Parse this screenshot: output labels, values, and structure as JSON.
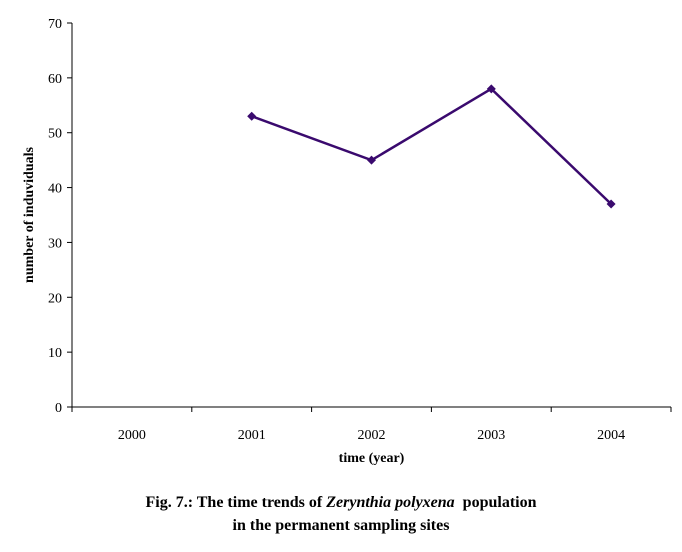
{
  "chart_data": {
    "type": "line",
    "x": [
      "2000",
      "2001",
      "2002",
      "2003",
      "2004"
    ],
    "series": [
      {
        "values": [
          null,
          53,
          45,
          58,
          37
        ]
      }
    ],
    "xlabel": "time (year)",
    "ylabel": "number of induviduals",
    "ylim": [
      0,
      70
    ],
    "yticks": [
      0,
      10,
      20,
      30,
      40,
      50,
      60,
      70
    ],
    "grid": false,
    "line_color": "#3a0a6e",
    "marker": "diamond"
  },
  "caption": {
    "prefix": "Fig. 7.: The time trends of ",
    "species": "Zerynthia polyxena",
    "suffix": "  population",
    "line2": "in the permanent sampling sites"
  }
}
